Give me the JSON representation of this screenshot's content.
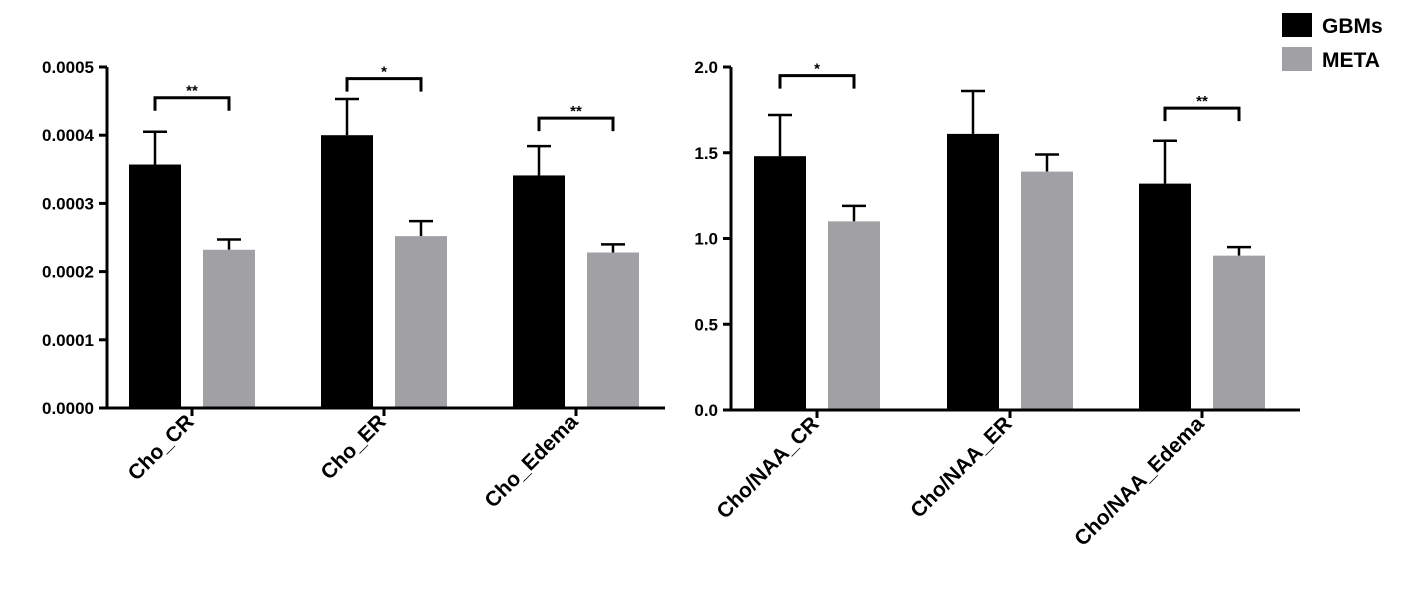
{
  "legend": {
    "items": [
      {
        "label": "GBMs",
        "color": "#000000"
      },
      {
        "label": "META",
        "color": "#a0a0a5"
      }
    ]
  },
  "chart_data": [
    {
      "type": "bar",
      "title": "",
      "xlabel": "",
      "ylabel": "",
      "categories": [
        "Cho_CR",
        "Cho_ER",
        "Cho_Edema"
      ],
      "ylim": [
        0,
        0.0005
      ],
      "yticks": [
        "0.0000",
        "0.0001",
        "0.0002",
        "0.0003",
        "0.0004",
        "0.0005"
      ],
      "series": [
        {
          "name": "GBMs",
          "color": "#000000",
          "values": [
            0.000357,
            0.0004,
            0.000341
          ],
          "errors": [
            4.8e-05,
            5.3e-05,
            4.3e-05
          ]
        },
        {
          "name": "META",
          "color": "#a0a0a5",
          "values": [
            0.000232,
            0.000252,
            0.000228
          ],
          "errors": [
            1.5e-05,
            2.2e-05,
            1.2e-05
          ]
        }
      ],
      "significance": [
        {
          "category_index": 0,
          "label": "**",
          "y": 0.000455
        },
        {
          "category_index": 1,
          "label": "*",
          "y": 0.000483
        },
        {
          "category_index": 2,
          "label": "**",
          "y": 0.000425
        }
      ]
    },
    {
      "type": "bar",
      "title": "",
      "xlabel": "",
      "ylabel": "",
      "categories": [
        "Cho/NAA_CR",
        "Cho/NAA_ER",
        "Cho/NAA_Edema"
      ],
      "ylim": [
        0,
        2.0
      ],
      "yticks": [
        "0.0",
        "0.5",
        "1.0",
        "1.5",
        "2.0"
      ],
      "series": [
        {
          "name": "GBMs",
          "color": "#000000",
          "values": [
            1.48,
            1.61,
            1.32
          ],
          "errors": [
            0.24,
            0.25,
            0.25
          ]
        },
        {
          "name": "META",
          "color": "#a0a0a5",
          "values": [
            1.1,
            1.39,
            0.9
          ],
          "errors": [
            0.09,
            0.1,
            0.05
          ]
        }
      ],
      "significance": [
        {
          "category_index": 0,
          "label": "*",
          "y": 1.95
        },
        {
          "category_index": 2,
          "label": "**",
          "y": 1.76
        }
      ]
    }
  ]
}
